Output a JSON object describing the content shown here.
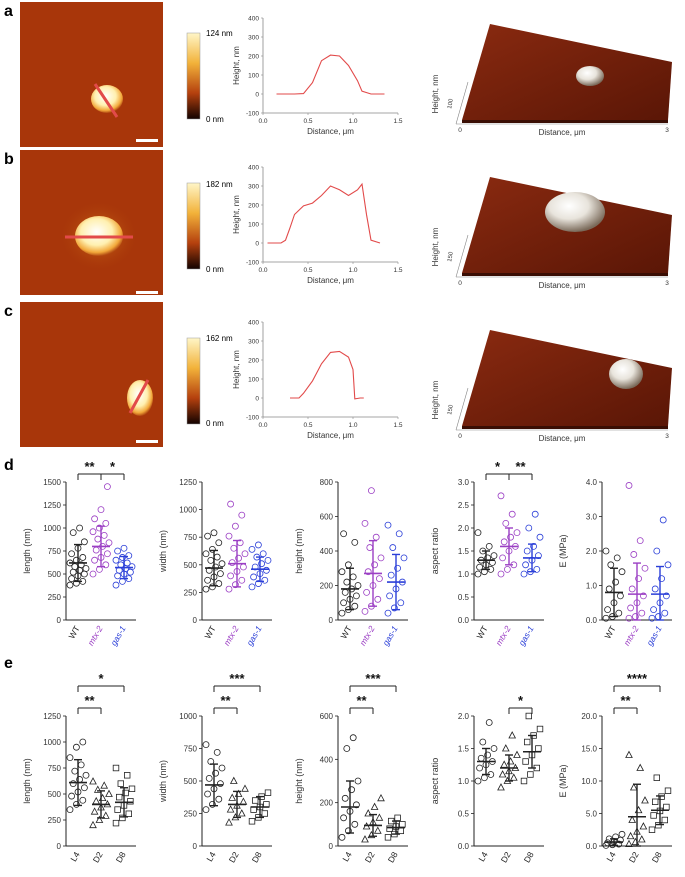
{
  "figure": {
    "colors": {
      "wt": "#222222",
      "mtx2": "#9b3fc4",
      "gas1": "#2b3fd8",
      "profile": "#e24a4a"
    },
    "rows": [
      {
        "label": "a",
        "scalebar": {
          "max": "124 nm",
          "min": "0 nm"
        },
        "profile": [
          [
            0.15,
            0
          ],
          [
            0.35,
            0
          ],
          [
            0.45,
            2
          ],
          [
            0.55,
            60
          ],
          [
            0.65,
            175
          ],
          [
            0.75,
            205
          ],
          [
            0.85,
            200
          ],
          [
            0.95,
            150
          ],
          [
            1.05,
            70
          ],
          [
            1.1,
            15
          ],
          [
            1.2,
            0
          ],
          [
            1.35,
            0
          ]
        ]
      },
      {
        "label": "b",
        "scalebar": {
          "max": "182 nm",
          "min": "0 nm"
        },
        "profile": [
          [
            0.05,
            0
          ],
          [
            0.2,
            0
          ],
          [
            0.25,
            15
          ],
          [
            0.3,
            80
          ],
          [
            0.35,
            150
          ],
          [
            0.45,
            195
          ],
          [
            0.55,
            210
          ],
          [
            0.65,
            250
          ],
          [
            0.75,
            300
          ],
          [
            0.85,
            280
          ],
          [
            0.95,
            250
          ],
          [
            1.05,
            280
          ],
          [
            1.1,
            310
          ],
          [
            1.15,
            150
          ],
          [
            1.2,
            15
          ],
          [
            1.3,
            0
          ]
        ]
      },
      {
        "label": "c",
        "scalebar": {
          "max": "162 nm",
          "min": "0 nm"
        },
        "profile": [
          [
            0.3,
            0
          ],
          [
            0.4,
            0
          ],
          [
            0.45,
            25
          ],
          [
            0.55,
            90
          ],
          [
            0.65,
            180
          ],
          [
            0.75,
            240
          ],
          [
            0.85,
            245
          ],
          [
            0.95,
            215
          ],
          [
            1.0,
            150
          ],
          [
            1.02,
            -5
          ],
          [
            1.08,
            0
          ],
          [
            1.12,
            0
          ]
        ]
      }
    ],
    "profile_axes": {
      "xlabel": "Distance, μm",
      "ylabel": "Height, nm",
      "xticks": [
        "0.0",
        "0.5",
        "1.0",
        "1.5"
      ],
      "yticks": [
        "-100",
        "0",
        "100",
        "200",
        "300",
        "400"
      ]
    },
    "surface_axes": {
      "xlabel": "Distance, μm",
      "ylabel": "Height, nm",
      "xticks": [
        "0",
        "3"
      ],
      "zticks": [
        "100",
        "150",
        "150"
      ]
    },
    "panel_d": {
      "label": "d",
      "groups": [
        "WT",
        "mtx-2",
        "gas-1"
      ]
    },
    "panel_e": {
      "label": "e",
      "groups": [
        "L4",
        "D2",
        "D8"
      ]
    },
    "sig": [
      "**",
      "*",
      "*",
      "**",
      "**",
      "*",
      "**",
      "***",
      "**",
      "***",
      "*",
      "**",
      "****"
    ]
  },
  "chart_data": [
    {
      "type": "scatter",
      "panel": "d",
      "ylabel": "length (nm)",
      "ylim": [
        0,
        1500
      ],
      "yticks": [
        "0",
        "250",
        "500",
        "750",
        "1000",
        "1250",
        "1500"
      ],
      "categories": [
        "WT",
        "mtx-2",
        "gas-1"
      ],
      "series": [
        {
          "name": "WT",
          "mean": 620,
          "sd": 200,
          "values": [
            380,
            400,
            420,
            450,
            480,
            500,
            520,
            540,
            560,
            580,
            600,
            620,
            650,
            680,
            720,
            780,
            850,
            950,
            1000
          ]
        },
        {
          "name": "mtx-2",
          "mean": 800,
          "sd": 220,
          "values": [
            500,
            550,
            600,
            650,
            680,
            720,
            760,
            800,
            840,
            880,
            920,
            960,
            1000,
            1050,
            1100,
            1200,
            1450
          ]
        },
        {
          "name": "gas-1",
          "mean": 570,
          "sd": 120,
          "values": [
            380,
            420,
            450,
            480,
            500,
            520,
            540,
            560,
            580,
            600,
            620,
            650,
            680,
            700,
            750,
            780
          ]
        }
      ],
      "brackets": [
        {
          "from": 0,
          "to": 1,
          "text": "**"
        },
        {
          "from": 1,
          "to": 2,
          "text": "*"
        }
      ]
    },
    {
      "type": "scatter",
      "panel": "d",
      "ylabel": "width (nm)",
      "ylim": [
        0,
        1250
      ],
      "yticks": [
        "0",
        "250",
        "500",
        "750",
        "1000",
        "1250"
      ],
      "categories": [
        "WT",
        "mtx-2",
        "gas-1"
      ],
      "series": [
        {
          "name": "WT",
          "mean": 470,
          "sd": 160,
          "values": [
            280,
            300,
            330,
            360,
            390,
            420,
            450,
            480,
            510,
            540,
            570,
            600,
            640,
            700,
            760,
            790
          ]
        },
        {
          "name": "mtx-2",
          "mean": 510,
          "sd": 210,
          "values": [
            280,
            320,
            360,
            400,
            440,
            480,
            520,
            560,
            600,
            650,
            700,
            760,
            850,
            950,
            1050
          ]
        },
        {
          "name": "gas-1",
          "mean": 460,
          "sd": 110,
          "values": [
            300,
            330,
            360,
            390,
            420,
            450,
            480,
            510,
            540,
            570,
            600,
            640,
            680
          ]
        }
      ]
    },
    {
      "type": "scatter",
      "panel": "d",
      "ylabel": "height (nm)",
      "ylim": [
        0,
        800
      ],
      "yticks": [
        "0",
        "200",
        "400",
        "600",
        "800"
      ],
      "categories": [
        "WT",
        "mtx-2",
        "gas-1"
      ],
      "series": [
        {
          "name": "WT",
          "mean": 180,
          "sd": 120,
          "values": [
            40,
            60,
            80,
            100,
            120,
            140,
            160,
            180,
            200,
            220,
            250,
            280,
            320,
            450,
            500
          ]
        },
        {
          "name": "mtx-2",
          "mean": 270,
          "sd": 190,
          "values": [
            50,
            80,
            120,
            160,
            200,
            240,
            280,
            320,
            360,
            420,
            480,
            560,
            750
          ]
        },
        {
          "name": "gas-1",
          "mean": 220,
          "sd": 160,
          "values": [
            40,
            70,
            100,
            140,
            180,
            220,
            260,
            300,
            360,
            420,
            500,
            550
          ]
        }
      ]
    },
    {
      "type": "scatter",
      "panel": "d",
      "ylabel": "aspect ratio",
      "ylim": [
        0,
        3.0
      ],
      "yticks": [
        "0.0",
        "0.5",
        "1.0",
        "1.5",
        "2.0",
        "2.5",
        "3.0"
      ],
      "categories": [
        "WT",
        "mtx-2",
        "gas-1"
      ],
      "series": [
        {
          "name": "WT",
          "mean": 1.3,
          "sd": 0.2,
          "values": [
            1.0,
            1.05,
            1.1,
            1.15,
            1.2,
            1.25,
            1.3,
            1.35,
            1.4,
            1.5,
            1.6,
            1.9
          ]
        },
        {
          "name": "mtx-2",
          "mean": 1.6,
          "sd": 0.4,
          "values": [
            1.0,
            1.1,
            1.2,
            1.35,
            1.5,
            1.6,
            1.7,
            1.8,
            1.9,
            2.1,
            2.3,
            2.7
          ]
        },
        {
          "name": "gas-1",
          "mean": 1.35,
          "sd": 0.3,
          "values": [
            1.0,
            1.05,
            1.1,
            1.2,
            1.3,
            1.4,
            1.5,
            1.6,
            1.8,
            2.0,
            2.3
          ]
        }
      ],
      "brackets": [
        {
          "from": 0,
          "to": 1,
          "text": "*"
        },
        {
          "from": 1,
          "to": 2,
          "text": "**"
        }
      ]
    },
    {
      "type": "scatter",
      "panel": "d",
      "ylabel": "E (MPa)",
      "ylim": [
        0,
        4.0
      ],
      "yticks": [
        "0.0",
        "1.0",
        "2.0",
        "3.0",
        "4.0"
      ],
      "categories": [
        "WT",
        "mtx-2",
        "gas-1"
      ],
      "series": [
        {
          "name": "WT",
          "mean": 0.8,
          "sd": 0.7,
          "values": [
            0.05,
            0.1,
            0.2,
            0.3,
            0.5,
            0.7,
            0.9,
            1.1,
            1.4,
            1.6,
            1.8,
            2.0
          ]
        },
        {
          "name": "mtx-2",
          "mean": 0.75,
          "sd": 0.9,
          "values": [
            0.05,
            0.1,
            0.2,
            0.35,
            0.5,
            0.7,
            0.9,
            1.2,
            1.5,
            1.9,
            2.3,
            3.9
          ]
        },
        {
          "name": "gas-1",
          "mean": 0.75,
          "sd": 0.8,
          "values": [
            0.05,
            0.1,
            0.2,
            0.3,
            0.5,
            0.7,
            0.9,
            1.2,
            1.6,
            2.0,
            2.9
          ]
        }
      ]
    },
    {
      "type": "scatter",
      "panel": "e",
      "ylabel": "length (nm)",
      "ylim": [
        0,
        1250
      ],
      "yticks": [
        "0",
        "250",
        "500",
        "750",
        "1000",
        "1250"
      ],
      "categories": [
        "L4",
        "D2",
        "D8"
      ],
      "series": [
        {
          "name": "L4",
          "mean": 610,
          "sd": 220,
          "values": [
            350,
            400,
            440,
            480,
            520,
            560,
            600,
            640,
            680,
            720,
            780,
            850,
            950,
            1000
          ]
        },
        {
          "name": "D2",
          "mean": 400,
          "sd": 130,
          "values": [
            200,
            250,
            290,
            330,
            370,
            400,
            430,
            460,
            500,
            540,
            580,
            620
          ]
        },
        {
          "name": "D8",
          "mean": 420,
          "sd": 140,
          "values": [
            220,
            270,
            310,
            350,
            390,
            430,
            470,
            510,
            550,
            600,
            680,
            750
          ]
        }
      ],
      "brackets": [
        {
          "from": 0,
          "to": 1,
          "text": "**"
        },
        {
          "from": 0,
          "to": 2,
          "text": "*"
        }
      ]
    },
    {
      "type": "scatter",
      "panel": "e",
      "ylabel": "width (nm)",
      "ylim": [
        0,
        1000
      ],
      "yticks": [
        "0",
        "250",
        "500",
        "750",
        "1000"
      ],
      "categories": [
        "L4",
        "D2",
        "D8"
      ],
      "series": [
        {
          "name": "L4",
          "mean": 470,
          "sd": 160,
          "values": [
            280,
            320,
            360,
            400,
            440,
            480,
            520,
            560,
            600,
            650,
            720,
            780
          ]
        },
        {
          "name": "D2",
          "mean": 320,
          "sd": 100,
          "values": [
            180,
            220,
            250,
            280,
            310,
            340,
            370,
            400,
            440,
            500
          ]
        },
        {
          "name": "D8",
          "mean": 300,
          "sd": 80,
          "values": [
            190,
            220,
            250,
            280,
            300,
            320,
            350,
            380,
            410
          ]
        }
      ],
      "brackets": [
        {
          "from": 0,
          "to": 1,
          "text": "**"
        },
        {
          "from": 0,
          "to": 2,
          "text": "***"
        }
      ]
    },
    {
      "type": "scatter",
      "panel": "e",
      "ylabel": "height (nm)",
      "ylim": [
        0,
        600
      ],
      "yticks": [
        "0",
        "200",
        "400",
        "600"
      ],
      "categories": [
        "L4",
        "D2",
        "D8"
      ],
      "series": [
        {
          "name": "L4",
          "mean": 180,
          "sd": 120,
          "values": [
            40,
            70,
            100,
            130,
            160,
            190,
            220,
            260,
            300,
            450,
            500
          ]
        },
        {
          "name": "D2",
          "mean": 95,
          "sd": 50,
          "values": [
            30,
            50,
            70,
            90,
            110,
            130,
            150,
            180,
            220
          ]
        },
        {
          "name": "D8",
          "mean": 85,
          "sd": 30,
          "values": [
            40,
            55,
            70,
            80,
            90,
            100,
            115,
            130
          ]
        }
      ],
      "brackets": [
        {
          "from": 0,
          "to": 1,
          "text": "**"
        },
        {
          "from": 0,
          "to": 2,
          "text": "***"
        }
      ]
    },
    {
      "type": "scatter",
      "panel": "e",
      "ylabel": "aspect ratio",
      "ylim": [
        0,
        2.0
      ],
      "yticks": [
        "0.0",
        "0.5",
        "1.0",
        "1.5",
        "2.0"
      ],
      "categories": [
        "L4",
        "D2",
        "D8"
      ],
      "series": [
        {
          "name": "L4",
          "mean": 1.3,
          "sd": 0.2,
          "values": [
            1.0,
            1.05,
            1.1,
            1.2,
            1.25,
            1.3,
            1.35,
            1.4,
            1.5,
            1.6,
            1.9
          ]
        },
        {
          "name": "D2",
          "mean": 1.2,
          "sd": 0.2,
          "values": [
            0.9,
            1.0,
            1.05,
            1.1,
            1.15,
            1.2,
            1.25,
            1.3,
            1.4,
            1.5,
            1.7
          ]
        },
        {
          "name": "D8",
          "mean": 1.45,
          "sd": 0.25,
          "values": [
            1.0,
            1.1,
            1.2,
            1.3,
            1.4,
            1.5,
            1.6,
            1.7,
            1.8,
            2.0
          ]
        }
      ],
      "brackets": [
        {
          "from": 1,
          "to": 2,
          "text": "*"
        }
      ]
    },
    {
      "type": "scatter",
      "panel": "e",
      "ylabel": "E (MPa)",
      "ylim": [
        0,
        20.0
      ],
      "yticks": [
        "0.0",
        "5.0",
        "10.0",
        "15.0",
        "20.0"
      ],
      "categories": [
        "L4",
        "D2",
        "D8"
      ],
      "series": [
        {
          "name": "L4",
          "mean": 0.6,
          "sd": 0.5,
          "values": [
            0.1,
            0.2,
            0.3,
            0.5,
            0.7,
            0.9,
            1.1,
            1.4,
            1.8
          ]
        },
        {
          "name": "D2",
          "mean": 4.5,
          "sd": 5.0,
          "values": [
            0.3,
            0.6,
            1.0,
            1.5,
            2.2,
            3.0,
            4.0,
            5.5,
            7.0,
            9.0,
            12.0,
            14.0
          ]
        },
        {
          "name": "D8",
          "mean": 5.5,
          "sd": 2.2,
          "values": [
            2.5,
            3.2,
            4.0,
            4.7,
            5.4,
            6.0,
            6.8,
            7.6,
            8.5,
            10.5
          ]
        }
      ],
      "brackets": [
        {
          "from": 0,
          "to": 1,
          "text": "**"
        },
        {
          "from": 0,
          "to": 2,
          "text": "****"
        }
      ]
    }
  ]
}
